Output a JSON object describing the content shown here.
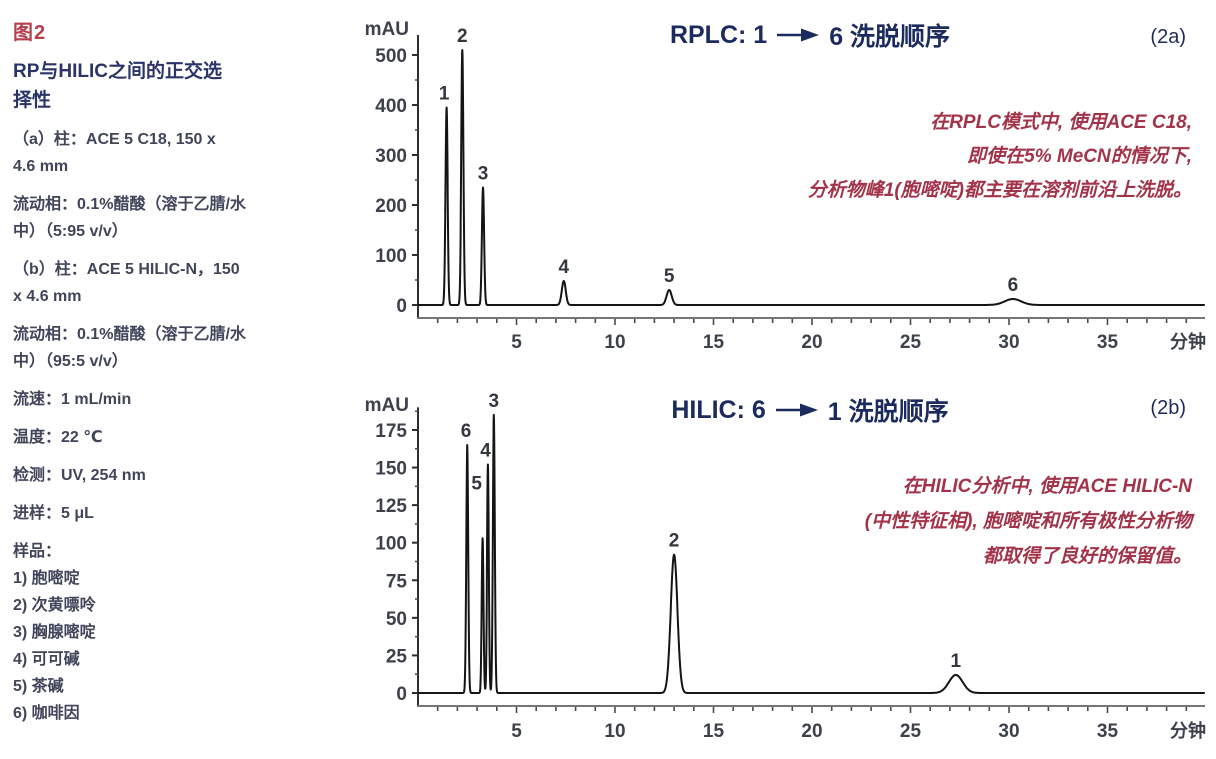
{
  "figure": {
    "label": "图2",
    "sidebar": {
      "heading_lines": [
        "RP与HILIC之间的正交选",
        "择性"
      ],
      "blocks": [
        {
          "lines": [
            "（a）柱：ACE 5 C18, 150 x",
            "4.6 mm"
          ]
        },
        {
          "lines": [
            "流动相：0.1%醋酸（溶于乙腈/水",
            "中）（5:95 v/v）"
          ]
        },
        {
          "lines": [
            "（b）柱：ACE 5 HILIC-N，150",
            "x 4.6 mm"
          ]
        },
        {
          "lines": [
            "流动相：0.1%醋酸（溶于乙腈/水",
            "中）（95:5 v/v）"
          ]
        },
        {
          "lines": [
            "流速：1 mL/min"
          ]
        },
        {
          "lines": [
            "温度：22 ℃"
          ]
        },
        {
          "lines": [
            "检测：UV, 254 nm"
          ]
        },
        {
          "lines": [
            "进样：5 μL"
          ]
        },
        {
          "lines": [
            "样品：",
            "1) 胞嘧啶",
            "2) 次黄嘌呤",
            "3) 胸腺嘧啶",
            "4) 可可碱",
            "5) 茶碱",
            "6) 咖啡因"
          ]
        }
      ]
    }
  },
  "colors": {
    "title_navy": "#1c2b5e",
    "figure_label_red": "#b5404c",
    "annotation_crimson": "#a23349",
    "heading_navy": "#2a3468",
    "body_text": "#40455a",
    "trace_black": "#141414",
    "x_axis_gray": "#757575",
    "tick_text": "#3c414b"
  },
  "chart_data": [
    {
      "type": "line",
      "title": "RPLC: 1 → 6 洗脱顺序",
      "title_prefix": "RPLC: 1",
      "title_suffix": "6 洗脱顺序",
      "panel_tag": "(2a)",
      "xlabel": "分钟",
      "ylabel": "mAU",
      "xlim": [
        0,
        39.8
      ],
      "ylim": [
        0,
        540
      ],
      "x_ticks": [
        5,
        10,
        15,
        20,
        25,
        30,
        35
      ],
      "y_ticks": [
        0,
        100,
        200,
        300,
        400,
        500
      ],
      "grid": false,
      "legend": false,
      "annotation": [
        "在RPLC模式中, 使用ACE C18,",
        "即使在5% MeCN的情况下,",
        "分析物峰1(胞嘧啶)都主要在溶剂前沿上洗脱。"
      ],
      "peaks": [
        {
          "label": "1",
          "time_min": 1.45,
          "height_mau": 395,
          "sigma_min": 0.055,
          "label_dt": -0.12
        },
        {
          "label": "2",
          "time_min": 2.25,
          "height_mau": 510,
          "sigma_min": 0.055
        },
        {
          "label": "3",
          "time_min": 3.3,
          "height_mau": 235,
          "sigma_min": 0.055
        },
        {
          "label": "4",
          "time_min": 7.4,
          "height_mau": 48,
          "sigma_min": 0.1
        },
        {
          "label": "5",
          "time_min": 12.75,
          "height_mau": 30,
          "sigma_min": 0.13
        },
        {
          "label": "6",
          "time_min": 30.2,
          "height_mau": 12,
          "sigma_min": 0.42
        }
      ]
    },
    {
      "type": "line",
      "title": "HILIC: 6 → 1 洗脱顺序",
      "title_prefix": "HILIC: 6",
      "title_suffix": "1 洗脱顺序",
      "panel_tag": "(2b)",
      "xlabel": "分钟",
      "ylabel": "mAU",
      "xlim": [
        0,
        39.8
      ],
      "ylim": [
        0,
        190
      ],
      "x_ticks": [
        5,
        10,
        15,
        20,
        25,
        30,
        35
      ],
      "y_ticks": [
        0,
        25,
        50,
        75,
        100,
        125,
        150,
        175
      ],
      "grid": false,
      "legend": false,
      "annotation": [
        "在HILIC分析中, 使用ACE HILIC-N",
        "(中性特征相), 胞嘧啶和所有极性分析物",
        "都取得了良好的保留值。"
      ],
      "peaks": [
        {
          "label": "6",
          "time_min": 2.5,
          "height_mau": 165,
          "sigma_min": 0.05,
          "label_dt": -0.06
        },
        {
          "label": "5",
          "time_min": 3.28,
          "height_mau": 103,
          "sigma_min": 0.045,
          "label_dt": -0.3,
          "label_v": 130
        },
        {
          "label": "4",
          "time_min": 3.55,
          "height_mau": 152,
          "sigma_min": 0.045,
          "label_dt": -0.12
        },
        {
          "label": "3",
          "time_min": 3.85,
          "height_mau": 185,
          "sigma_min": 0.05
        },
        {
          "label": "2",
          "time_min": 13.0,
          "height_mau": 92,
          "sigma_min": 0.17
        },
        {
          "label": "1",
          "time_min": 27.3,
          "height_mau": 12,
          "sigma_min": 0.35
        }
      ]
    }
  ]
}
